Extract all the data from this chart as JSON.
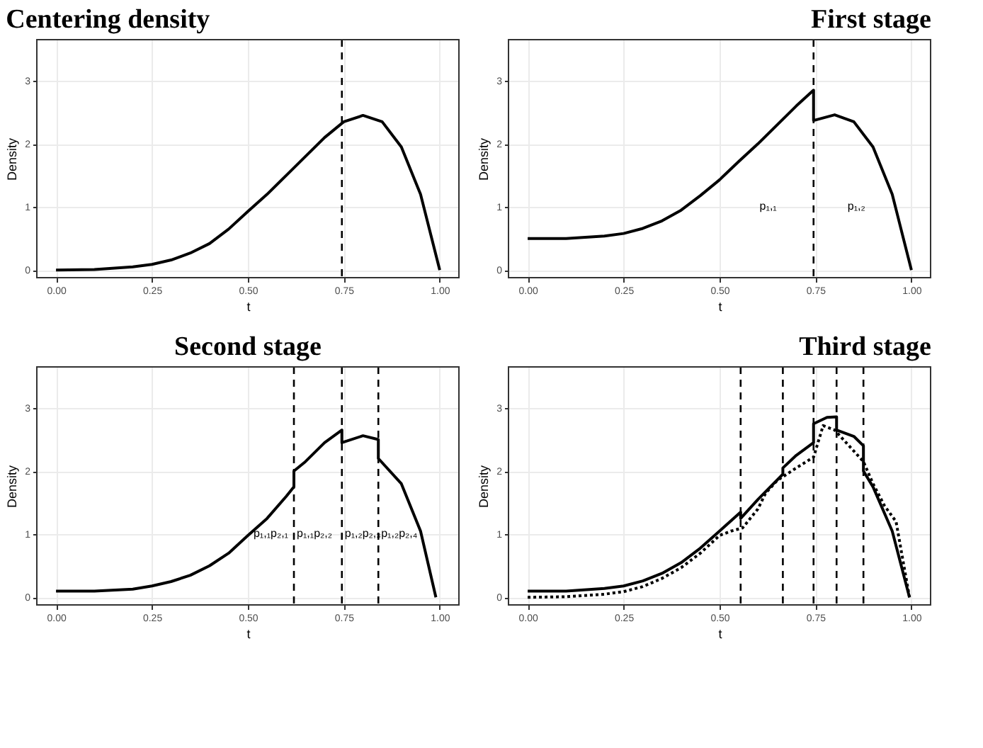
{
  "chart_data": [
    {
      "type": "line",
      "title": "Centering density",
      "xlabel": "t",
      "ylabel": "Density",
      "xlim": [
        -0.05,
        1.05
      ],
      "ylim": [
        -0.12,
        3.65
      ],
      "xticks": [
        {
          "value": 0,
          "label": "0.00"
        },
        {
          "value": 0.25,
          "label": "0.25"
        },
        {
          "value": 0.5,
          "label": "0.50"
        },
        {
          "value": 0.75,
          "label": "0.75"
        },
        {
          "value": 1,
          "label": "1.00"
        }
      ],
      "yticks": [
        0,
        1,
        2,
        3
      ],
      "grid": true,
      "series": [
        {
          "color": "#000000",
          "line_style": "solid",
          "x": [
            0,
            0.1,
            0.2,
            0.25,
            0.3,
            0.35,
            0.4,
            0.45,
            0.5,
            0.55,
            0.6,
            0.65,
            0.7,
            0.75,
            0.8,
            0.85,
            0.9,
            0.95,
            1.0
          ],
          "values": [
            0,
            0.01,
            0.05,
            0.09,
            0.16,
            0.27,
            0.42,
            0.65,
            0.93,
            1.2,
            1.5,
            1.8,
            2.1,
            2.35,
            2.45,
            2.35,
            1.95,
            1.2,
            0
          ]
        }
      ],
      "ref_lines": [
        {
          "axis": "x",
          "value": 0.745,
          "line_style": "dashed",
          "color": "#000000"
        }
      ]
    },
    {
      "type": "line",
      "title": "First stage",
      "xlabel": "t",
      "ylabel": "Density",
      "xlim": [
        -0.05,
        1.05
      ],
      "ylim": [
        -0.12,
        3.65
      ],
      "xticks": [
        {
          "value": 0,
          "label": "0.00"
        },
        {
          "value": 0.25,
          "label": "0.25"
        },
        {
          "value": 0.5,
          "label": "0.50"
        },
        {
          "value": 0.75,
          "label": "0.75"
        },
        {
          "value": 1,
          "label": "1.00"
        }
      ],
      "yticks": [
        0,
        1,
        2,
        3
      ],
      "grid": true,
      "series": [
        {
          "color": "#000000",
          "line_style": "solid",
          "x": [
            0,
            0.1,
            0.2,
            0.25,
            0.3,
            0.35,
            0.4,
            0.45,
            0.5,
            0.55,
            0.6,
            0.65,
            0.7,
            0.745,
            0.745,
            0.8,
            0.85,
            0.9,
            0.95,
            1.0
          ],
          "values": [
            0.5,
            0.5,
            0.54,
            0.58,
            0.66,
            0.78,
            0.95,
            1.18,
            1.43,
            1.72,
            2.0,
            2.3,
            2.6,
            2.85,
            2.37,
            2.46,
            2.35,
            1.95,
            1.2,
            0
          ]
        }
      ],
      "ref_lines": [
        {
          "axis": "x",
          "value": 0.745,
          "line_style": "dashed",
          "color": "#000000"
        }
      ],
      "annotations": [
        "p₁,₁",
        "p₁,₂"
      ]
    },
    {
      "type": "line",
      "title": "Second stage",
      "xlabel": "t",
      "ylabel": "Density",
      "xlim": [
        -0.05,
        1.05
      ],
      "ylim": [
        -0.12,
        3.65
      ],
      "xticks": [
        {
          "value": 0,
          "label": "0.00"
        },
        {
          "value": 0.25,
          "label": "0.25"
        },
        {
          "value": 0.5,
          "label": "0.50"
        },
        {
          "value": 0.75,
          "label": "0.75"
        },
        {
          "value": 1,
          "label": "1.00"
        }
      ],
      "yticks": [
        0,
        1,
        2,
        3
      ],
      "grid": true,
      "series": [
        {
          "color": "#000000",
          "line_style": "solid",
          "x": [
            0,
            0.1,
            0.2,
            0.25,
            0.3,
            0.35,
            0.4,
            0.45,
            0.5,
            0.55,
            0.6,
            0.62,
            0.62,
            0.65,
            0.7,
            0.745,
            0.745,
            0.8,
            0.84,
            0.84,
            0.9,
            0.95,
            0.99
          ],
          "values": [
            0.1,
            0.1,
            0.13,
            0.18,
            0.25,
            0.35,
            0.5,
            0.7,
            0.98,
            1.25,
            1.6,
            1.75,
            2.0,
            2.15,
            2.45,
            2.65,
            2.45,
            2.56,
            2.5,
            2.2,
            1.8,
            1.05,
            0
          ]
        }
      ],
      "ref_lines": [
        {
          "axis": "x",
          "value": 0.62,
          "line_style": "dashed",
          "color": "#000000"
        },
        {
          "axis": "x",
          "value": 0.745,
          "line_style": "dashed",
          "color": "#000000"
        },
        {
          "axis": "x",
          "value": 0.84,
          "line_style": "dashed",
          "color": "#000000"
        }
      ],
      "annotations": [
        "p₁,₁p₂,₁",
        "p₁,₁p₂,₂",
        "p₁,₂p₂,₃",
        "p₁,₂p₂,₄"
      ]
    },
    {
      "type": "line",
      "title": "Third stage",
      "xlabel": "t",
      "ylabel": "Density",
      "xlim": [
        -0.05,
        1.05
      ],
      "ylim": [
        -0.12,
        3.65
      ],
      "xticks": [
        {
          "value": 0,
          "label": "0.00"
        },
        {
          "value": 0.25,
          "label": "0.25"
        },
        {
          "value": 0.5,
          "label": "0.50"
        },
        {
          "value": 0.75,
          "label": "0.75"
        },
        {
          "value": 1,
          "label": "1.00"
        }
      ],
      "yticks": [
        0,
        1,
        2,
        3
      ],
      "grid": true,
      "series": [
        {
          "color": "#000000",
          "line_style": "solid",
          "x": [
            0,
            0.1,
            0.2,
            0.25,
            0.3,
            0.35,
            0.4,
            0.45,
            0.5,
            0.555,
            0.555,
            0.6,
            0.665,
            0.665,
            0.7,
            0.745,
            0.745,
            0.78,
            0.805,
            0.805,
            0.85,
            0.875,
            0.875,
            0.9,
            0.95,
            0.995
          ],
          "values": [
            0.1,
            0.1,
            0.14,
            0.18,
            0.26,
            0.38,
            0.55,
            0.78,
            1.05,
            1.35,
            1.25,
            1.55,
            1.95,
            2.05,
            2.25,
            2.45,
            2.75,
            2.85,
            2.86,
            2.65,
            2.55,
            2.4,
            2.0,
            1.75,
            1.05,
            0
          ]
        },
        {
          "color": "#000000",
          "line_style": "dotted",
          "x": [
            0,
            0.1,
            0.2,
            0.25,
            0.3,
            0.35,
            0.4,
            0.45,
            0.5,
            0.53,
            0.56,
            0.6,
            0.62,
            0.65,
            0.7,
            0.745,
            0.77,
            0.8,
            0.83,
            0.875,
            0.9,
            0.93,
            0.96,
            0.995
          ],
          "values": [
            0,
            0.01,
            0.05,
            0.09,
            0.17,
            0.3,
            0.47,
            0.7,
            0.98,
            1.05,
            1.1,
            1.4,
            1.65,
            1.85,
            2.05,
            2.22,
            2.72,
            2.65,
            2.45,
            2.15,
            1.8,
            1.45,
            1.2,
            0
          ]
        }
      ],
      "ref_lines": [
        {
          "axis": "x",
          "value": 0.555,
          "line_style": "dashed",
          "color": "#000000"
        },
        {
          "axis": "x",
          "value": 0.665,
          "line_style": "dashed",
          "color": "#000000"
        },
        {
          "axis": "x",
          "value": 0.745,
          "line_style": "dashed",
          "color": "#000000"
        },
        {
          "axis": "x",
          "value": 0.805,
          "line_style": "dashed",
          "color": "#000000"
        },
        {
          "axis": "x",
          "value": 0.875,
          "line_style": "dashed",
          "color": "#000000"
        }
      ]
    }
  ]
}
